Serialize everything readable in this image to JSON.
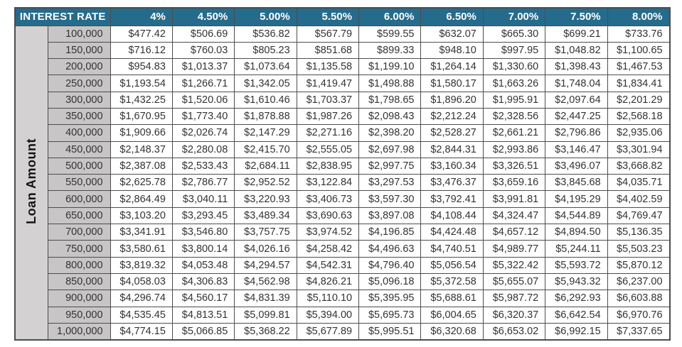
{
  "colors": {
    "header_bg": "#256b8c",
    "header_text": "#ffffff",
    "amount_col_bg": "#c7c5c5",
    "axis_label_bg": "#d3d1d1",
    "border": "#4d4d4d",
    "cell_text": "#333333",
    "page_bg": "#ffffff"
  },
  "chart_data": {
    "type": "table",
    "column_axis_label": "INTEREST RATE",
    "row_axis_label": "Loan Amount",
    "columns": [
      "4%",
      "4.50%",
      "5.00%",
      "5.50%",
      "6.00%",
      "6.50%",
      "7.00%",
      "7.50%",
      "8.00%"
    ],
    "row_labels": [
      "100,000",
      "150,000",
      "200,000",
      "250,000",
      "300,000",
      "350,000",
      "400,000",
      "450,000",
      "500,000",
      "550,000",
      "600,000",
      "650,000",
      "700,000",
      "750,000",
      "800,000",
      "850,000",
      "900,000",
      "950,000",
      "1,000,000"
    ],
    "rows": [
      [
        "$477.42",
        "$506.69",
        "$536.82",
        "$567.79",
        "$599.55",
        "$632.07",
        "$665.30",
        "$699.21",
        "$733.76"
      ],
      [
        "$716.12",
        "$760.03",
        "$805.23",
        "$851.68",
        "$899.33",
        "$948.10",
        "$997.95",
        "$1,048.82",
        "$1,100.65"
      ],
      [
        "$954.83",
        "$1,013.37",
        "$1,073.64",
        "$1,135.58",
        "$1,199.10",
        "$1,264.14",
        "$1,330.60",
        "$1,398.43",
        "$1,467.53"
      ],
      [
        "$1,193.54",
        "$1,266.71",
        "$1,342.05",
        "$1,419.47",
        "$1,498.88",
        "$1,580.17",
        "$1,663.26",
        "$1,748.04",
        "$1,834.41"
      ],
      [
        "$1,432.25",
        "$1,520.06",
        "$1,610.46",
        "$1,703.37",
        "$1,798.65",
        "$1,896.20",
        "$1,995.91",
        "$2,097.64",
        "$2,201.29"
      ],
      [
        "$1,670.95",
        "$1,773.40",
        "$1,878.88",
        "$1,987.26",
        "$2,098.43",
        "$2,212.24",
        "$2,328.56",
        "$2,447.25",
        "$2,568.18"
      ],
      [
        "$1,909.66",
        "$2,026.74",
        "$2,147.29",
        "$2,271.16",
        "$2,398.20",
        "$2,528.27",
        "$2,661.21",
        "$2,796.86",
        "$2,935.06"
      ],
      [
        "$2,148.37",
        "$2,280.08",
        "$2,415.70",
        "$2,555.05",
        "$2,697.98",
        "$2,844.31",
        "$2,993.86",
        "$3,146.47",
        "$3,301.94"
      ],
      [
        "$2,387.08",
        "$2,533.43",
        "$2,684.11",
        "$2,838.95",
        "$2,997.75",
        "$3,160.34",
        "$3,326.51",
        "$3,496.07",
        "$3,668.82"
      ],
      [
        "$2,625.78",
        "$2,786.77",
        "$2,952.52",
        "$3,122.84",
        "$3,297.53",
        "$3,476.37",
        "$3,659.16",
        "$3,845.68",
        "$4,035.71"
      ],
      [
        "$2,864.49",
        "$3,040.11",
        "$3,220.93",
        "$3,406.73",
        "$3,597.30",
        "$3,792.41",
        "$3,991.81",
        "$4,195.29",
        "$4,402.59"
      ],
      [
        "$3,103.20",
        "$3,293.45",
        "$3,489.34",
        "$3,690.63",
        "$3,897.08",
        "$4,108.44",
        "$4,324.47",
        "$4,544.89",
        "$4,769.47"
      ],
      [
        "$3,341.91",
        "$3,546.80",
        "$3,757.75",
        "$3,974.52",
        "$4,196.85",
        "$4,424.48",
        "$4,657.12",
        "$4,894.50",
        "$5,136.35"
      ],
      [
        "$3,580.61",
        "$3,800.14",
        "$4,026.16",
        "$4,258.42",
        "$4,496.63",
        "$4,740.51",
        "$4,989.77",
        "$5,244.11",
        "$5,503.23"
      ],
      [
        "$3,819.32",
        "$4,053.48",
        "$4,294.57",
        "$4,542.31",
        "$4,796.40",
        "$5,056.54",
        "$5,322.42",
        "$5,593.72",
        "$5,870.12"
      ],
      [
        "$4,058.03",
        "$4,306.83",
        "$4,562.98",
        "$4,826.21",
        "$5,096.18",
        "$5,372.58",
        "$5,655.07",
        "$5,943.32",
        "$6,237.00"
      ],
      [
        "$4,296.74",
        "$4,560.17",
        "$4,831.39",
        "$5,110.10",
        "$5,395.95",
        "$5,688.61",
        "$5,987.72",
        "$6,292.93",
        "$6,603.88"
      ],
      [
        "$4,535.45",
        "$4,813.51",
        "$5,099.81",
        "$5,394.00",
        "$5,695.73",
        "$6,004.65",
        "$6,320.37",
        "$6,642.54",
        "$6,970.76"
      ],
      [
        "$4,774.15",
        "$5,066.85",
        "$5,368.22",
        "$5,677.89",
        "$5,995.51",
        "$6,320.68",
        "$6,653.02",
        "$6,992.15",
        "$7,337.65"
      ]
    ]
  }
}
